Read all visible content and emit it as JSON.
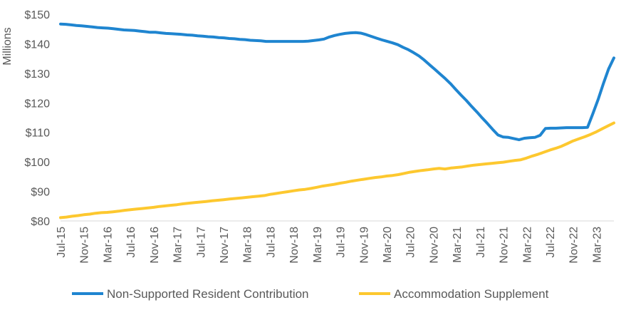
{
  "chart_data": {
    "type": "line",
    "title": "",
    "xlabel": "",
    "ylabel": "Millions",
    "ylim": [
      80,
      150
    ],
    "yticks": [
      "$80",
      "$90",
      "$100",
      "$110",
      "$120",
      "$130",
      "$140",
      "$150"
    ],
    "ytick_values": [
      80,
      90,
      100,
      110,
      120,
      130,
      140,
      150
    ],
    "xticks": [
      "Jul-15",
      "Nov-15",
      "Mar-16",
      "Jul-16",
      "Nov-16",
      "Mar-17",
      "Jul-17",
      "Nov-17",
      "Mar-18",
      "Jul-18",
      "Nov-18",
      "Mar-19",
      "Jul-19",
      "Nov-19",
      "Mar-20",
      "Jul-20",
      "Nov-20",
      "Mar-21",
      "Jul-21",
      "Nov-21",
      "Mar-22",
      "Jul-22",
      "Nov-22",
      "Mar-23"
    ],
    "grid": false,
    "legend_position": "bottom",
    "series": [
      {
        "name": "Non-Supported Resident Contribution",
        "color": "#1f85d0",
        "values": [
          146.7,
          146.6,
          146.4,
          146.2,
          146.1,
          145.9,
          145.7,
          145.5,
          145.4,
          145.3,
          145.1,
          144.9,
          144.7,
          144.6,
          144.5,
          144.3,
          144.1,
          143.9,
          143.9,
          143.7,
          143.5,
          143.4,
          143.3,
          143.2,
          143.0,
          142.9,
          142.7,
          142.6,
          142.4,
          142.3,
          142.1,
          142.0,
          141.8,
          141.7,
          141.5,
          141.4,
          141.2,
          141.1,
          141.0,
          140.8,
          140.8,
          140.8,
          140.8,
          140.8,
          140.8,
          140.8,
          140.8,
          140.9,
          141.1,
          141.3,
          141.6,
          142.3,
          142.8,
          143.2,
          143.5,
          143.7,
          143.8,
          143.6,
          143.1,
          142.5,
          141.9,
          141.3,
          140.8,
          140.3,
          139.7,
          138.8,
          138.0,
          137.0,
          135.9,
          134.5,
          132.9,
          131.4,
          129.8,
          128.2,
          126.5,
          124.5,
          122.6,
          120.8,
          118.8,
          116.9,
          114.9,
          113.0,
          111.0,
          109.1,
          108.4,
          108.3,
          107.9,
          107.5,
          108.0,
          108.2,
          108.3,
          109.0,
          111.3,
          111.4,
          111.4,
          111.5,
          111.6,
          111.6,
          111.6,
          111.6,
          111.7,
          116.3,
          121.1,
          126.5,
          131.5,
          135.2
        ],
        "approximate": true
      },
      {
        "name": "Accommodation Supplement",
        "color": "#fdc82f",
        "values": [
          81.1,
          81.3,
          81.6,
          81.8,
          82.1,
          82.3,
          82.6,
          82.8,
          82.9,
          83.1,
          83.3,
          83.6,
          83.8,
          84.0,
          84.2,
          84.4,
          84.6,
          84.9,
          85.1,
          85.3,
          85.5,
          85.8,
          86.0,
          86.2,
          86.4,
          86.6,
          86.8,
          87.0,
          87.2,
          87.4,
          87.6,
          87.8,
          88.0,
          88.2,
          88.4,
          88.6,
          89.0,
          89.3,
          89.6,
          89.9,
          90.2,
          90.5,
          90.7,
          91.0,
          91.4,
          91.8,
          92.1,
          92.4,
          92.8,
          93.1,
          93.5,
          93.8,
          94.1,
          94.4,
          94.7,
          94.9,
          95.2,
          95.4,
          95.7,
          96.1,
          96.5,
          96.8,
          97.1,
          97.3,
          97.6,
          97.8,
          97.6,
          97.9,
          98.1,
          98.3,
          98.6,
          98.9,
          99.1,
          99.3,
          99.5,
          99.7,
          99.9,
          100.2,
          100.5,
          100.7,
          101.3,
          102.0,
          102.6,
          103.3,
          104.0,
          104.6,
          105.3,
          106.2,
          107.1,
          107.8,
          108.5,
          109.3,
          110.2,
          111.2,
          112.2,
          113.2
        ],
        "approximate": true
      }
    ]
  }
}
